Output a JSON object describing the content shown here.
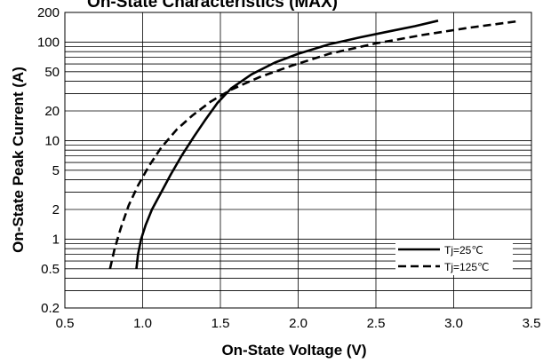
{
  "chart_data": {
    "type": "line",
    "title": "On-State Characteristics (MAX)",
    "xlabel": "On-State Voltage (V)",
    "ylabel": "On-State Peak Current (A)",
    "xlim": [
      0.5,
      3.5
    ],
    "ylim": [
      0.2,
      200
    ],
    "yscale": "log",
    "x_ticks": [
      "0.5",
      "1.0",
      "1.5",
      "2.0",
      "2.5",
      "3.0",
      "3.5"
    ],
    "y_ticks": [
      "0.2",
      "0.5",
      "1",
      "2",
      "5",
      "10",
      "20",
      "50",
      "100",
      "200"
    ],
    "grid": true,
    "legend_position": "bottom-right",
    "series": [
      {
        "name": "Tj=25℃",
        "style": "solid",
        "points": [
          [
            0.96,
            0.5
          ],
          [
            0.97,
            0.7
          ],
          [
            0.99,
            1.0
          ],
          [
            1.02,
            1.4
          ],
          [
            1.06,
            2.0
          ],
          [
            1.12,
            3.0
          ],
          [
            1.18,
            4.5
          ],
          [
            1.25,
            7.0
          ],
          [
            1.33,
            11
          ],
          [
            1.4,
            16
          ],
          [
            1.48,
            24
          ],
          [
            1.57,
            34
          ],
          [
            1.7,
            47
          ],
          [
            1.85,
            62
          ],
          [
            2.0,
            76
          ],
          [
            2.2,
            95
          ],
          [
            2.4,
            112
          ],
          [
            2.6,
            130
          ],
          [
            2.75,
            145
          ],
          [
            2.9,
            165
          ]
        ]
      },
      {
        "name": "Tj=125℃",
        "style": "dashed",
        "points": [
          [
            0.79,
            0.5
          ],
          [
            0.82,
            0.8
          ],
          [
            0.86,
            1.3
          ],
          [
            0.91,
            2.2
          ],
          [
            0.97,
            3.5
          ],
          [
            1.04,
            5.5
          ],
          [
            1.12,
            8.5
          ],
          [
            1.22,
            13
          ],
          [
            1.32,
            18
          ],
          [
            1.44,
            25
          ],
          [
            1.57,
            33
          ],
          [
            1.75,
            44
          ],
          [
            1.95,
            57
          ],
          [
            2.2,
            76
          ],
          [
            2.5,
            97
          ],
          [
            2.8,
            118
          ],
          [
            3.1,
            140
          ],
          [
            3.4,
            162
          ]
        ]
      }
    ]
  }
}
